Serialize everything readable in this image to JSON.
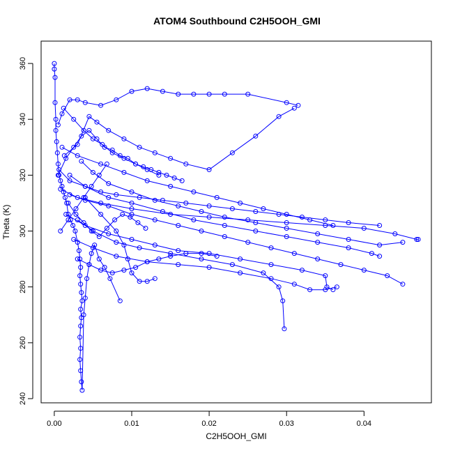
{
  "chart_data": {
    "type": "scatter",
    "title": "ATOM4 Southbound C2H5OOH_GMI",
    "xlabel": "C2H5OOH_GMI",
    "ylabel": "Theta (K)",
    "xlim": [
      -0.0017,
      0.0487
    ],
    "ylim": [
      238.5,
      368
    ],
    "xticks": [
      0.0,
      0.01,
      0.02,
      0.03,
      0.04
    ],
    "xtick_labels": [
      "0.00",
      "0.01",
      "0.02",
      "0.03",
      "0.04"
    ],
    "yticks": [
      240,
      260,
      280,
      300,
      320,
      340,
      360
    ],
    "ytick_labels": [
      "240",
      "260",
      "280",
      "300",
      "320",
      "340",
      "360"
    ],
    "grid": false,
    "marker": "open-circle",
    "connected": true,
    "series_color": "#0000ff",
    "series": [
      {
        "x": [
          0.0,
          0.0,
          0.0001,
          0.0001,
          0.0002,
          0.0002,
          0.0003,
          0.0004,
          0.0005,
          0.0006,
          0.0008,
          0.001,
          0.0012,
          0.0014,
          0.0016,
          0.0018,
          0.0021,
          0.0024,
          0.0027,
          0.003,
          0.0032,
          0.0033,
          0.0034,
          0.0033,
          0.0034,
          0.0035,
          0.0036,
          0.0034,
          0.0035,
          0.0034,
          0.0033,
          0.0034,
          0.0033,
          0.0034,
          0.0035,
          0.0036,
          0.0038,
          0.004,
          0.0042,
          0.0045,
          0.0048,
          0.0052,
          0.0058,
          0.0065,
          0.0072,
          0.0085
        ],
        "y": [
          360,
          358,
          355,
          346,
          340,
          336,
          332,
          328,
          324,
          320,
          318,
          316,
          314,
          312,
          310,
          306,
          304,
          302,
          300,
          296,
          293,
          290,
          287,
          284,
          281,
          278,
          275,
          272,
          269,
          266,
          262,
          258,
          254,
          250,
          246,
          243,
          270,
          276,
          283,
          288,
          292,
          295,
          290,
          287,
          283,
          275
        ]
      },
      {
        "x": [
          0.0005,
          0.001,
          0.002,
          0.003,
          0.004,
          0.006,
          0.008,
          0.01,
          0.012,
          0.014,
          0.016,
          0.018,
          0.02,
          0.022,
          0.025,
          0.03,
          0.0315
        ],
        "y": [
          338,
          342,
          347,
          347,
          346,
          345,
          347,
          350,
          351,
          350,
          349,
          349,
          349,
          349,
          349,
          346,
          345
        ]
      },
      {
        "x": [
          0.0013,
          0.003,
          0.0045,
          0.0055,
          0.007,
          0.009,
          0.011,
          0.013,
          0.015,
          0.017,
          0.02,
          0.023,
          0.026,
          0.029,
          0.031
        ],
        "y": [
          327,
          331,
          341,
          339,
          336,
          333,
          330,
          328,
          326,
          324,
          322,
          328,
          334,
          341,
          344
        ]
      },
      {
        "x": [
          0.0006,
          0.002,
          0.004,
          0.006,
          0.008,
          0.011,
          0.014,
          0.017,
          0.02,
          0.023,
          0.026,
          0.029,
          0.032,
          0.035,
          0.038,
          0.042
        ],
        "y": [
          322,
          318,
          316,
          314,
          313,
          312,
          311,
          310,
          309,
          308,
          307,
          306,
          305,
          304,
          303,
          302
        ]
      },
      {
        "x": [
          0.0008,
          0.003,
          0.006,
          0.01,
          0.015,
          0.02,
          0.025,
          0.03,
          0.035,
          0.04,
          0.044,
          0.0468,
          0.047
        ],
        "y": [
          315,
          312,
          310,
          308,
          306,
          305,
          304,
          303,
          302,
          301,
          299,
          297,
          297
        ]
      },
      {
        "x": [
          0.002,
          0.004,
          0.007,
          0.01,
          0.014,
          0.018,
          0.022,
          0.026,
          0.03,
          0.034,
          0.038,
          0.041,
          0.042
        ],
        "y": [
          320,
          316,
          312,
          310,
          307,
          304,
          302,
          300,
          298,
          296,
          294,
          292,
          291
        ]
      },
      {
        "x": [
          0.0015,
          0.004,
          0.007,
          0.01,
          0.013,
          0.016,
          0.02,
          0.024,
          0.028,
          0.032,
          0.035,
          0.0352,
          0.036
        ],
        "y": [
          306,
          302,
          299,
          297,
          295,
          293,
          292,
          290,
          288,
          286,
          284,
          280,
          279
        ]
      },
      {
        "x": [
          0.003,
          0.005,
          0.008,
          0.011,
          0.015,
          0.019,
          0.023,
          0.027,
          0.029,
          0.0295,
          0.0297
        ],
        "y": [
          304,
          300,
          296,
          294,
          292,
          290,
          288,
          285,
          280,
          275,
          265
        ]
      },
      {
        "x": [
          0.0035,
          0.005,
          0.007,
          0.01,
          0.013,
          0.016,
          0.019,
          0.022,
          0.026,
          0.03,
          0.034,
          0.038,
          0.042,
          0.045
        ],
        "y": [
          325,
          321,
          317,
          314,
          311,
          309,
          307,
          305,
          303,
          301,
          299,
          297,
          295,
          296
        ]
      },
      {
        "x": [
          0.002,
          0.004,
          0.007,
          0.01,
          0.013,
          0.016,
          0.019,
          0.022,
          0.025,
          0.028,
          0.031,
          0.034,
          0.037,
          0.04,
          0.043,
          0.045
        ],
        "y": [
          313,
          311,
          309,
          306,
          304,
          302,
          300,
          298,
          296,
          294,
          292,
          290,
          288,
          286,
          284,
          281
        ]
      },
      {
        "x": [
          0.001,
          0.003,
          0.006,
          0.009,
          0.012,
          0.015,
          0.018,
          0.021,
          0.024,
          0.027,
          0.03,
          0.033,
          0.036
        ],
        "y": [
          330,
          327,
          324,
          321,
          318,
          316,
          314,
          312,
          310,
          308,
          306,
          304,
          302
        ]
      },
      {
        "x": [
          0.004,
          0.006,
          0.008,
          0.009,
          0.0095,
          0.01,
          0.011,
          0.012,
          0.013
        ],
        "y": [
          312,
          306,
          300,
          295,
          290,
          285,
          282,
          282,
          283
        ]
      },
      {
        "x": [
          0.0025,
          0.005,
          0.008,
          0.012,
          0.016,
          0.02,
          0.024,
          0.028,
          0.031,
          0.033,
          0.035,
          0.0365
        ],
        "y": [
          297,
          294,
          291,
          289,
          288,
          287,
          285,
          283,
          281,
          279,
          279,
          280
        ]
      },
      {
        "x": [
          0.0005,
          0.0015,
          0.0025,
          0.0035,
          0.0045,
          0.0055,
          0.0065,
          0.0075,
          0.0085,
          0.0095,
          0.0105,
          0.0115,
          0.0125,
          0.0135,
          0.0145,
          0.0155,
          0.0165
        ],
        "y": [
          320,
          326,
          330,
          334,
          336,
          333,
          330,
          329,
          327,
          326,
          324,
          323,
          322,
          321,
          320,
          319,
          318
        ]
      },
      {
        "x": [
          0.0018,
          0.0028,
          0.0038,
          0.0048,
          0.0058,
          0.0068,
          0.0078,
          0.0088,
          0.0098,
          0.0108,
          0.0118
        ],
        "y": [
          310,
          306,
          303,
          300,
          298,
          301,
          304,
          306,
          305,
          303,
          301
        ]
      },
      {
        "x": [
          0.0012,
          0.0025,
          0.0038,
          0.005,
          0.0062,
          0.0075,
          0.009,
          0.0105,
          0.012,
          0.0135
        ],
        "y": [
          344,
          340,
          336,
          333,
          331,
          328,
          326,
          324,
          322,
          320
        ]
      },
      {
        "x": [
          0.003,
          0.0045,
          0.006,
          0.0075,
          0.009,
          0.0105,
          0.012,
          0.0135,
          0.015,
          0.017,
          0.019,
          0.021
        ],
        "y": [
          290,
          288,
          286,
          285,
          286,
          287,
          289,
          290,
          291,
          292,
          292,
          291
        ]
      },
      {
        "x": [
          0.0008,
          0.0018,
          0.0028,
          0.0038,
          0.0048,
          0.0058,
          0.0068
        ],
        "y": [
          300,
          304,
          308,
          312,
          316,
          320,
          324
        ]
      }
    ]
  }
}
